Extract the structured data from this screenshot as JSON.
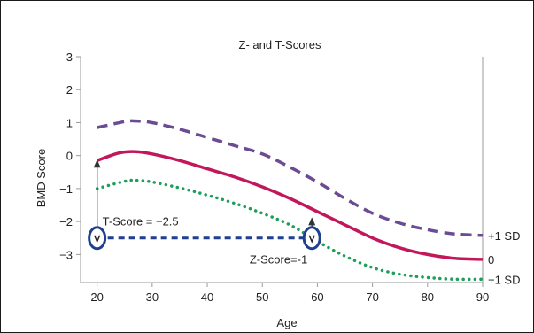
{
  "chart_data": {
    "type": "line",
    "title": "Z- and T-Scores",
    "xlabel": "Age",
    "ylabel": "BMD Score",
    "xlim": [
      17,
      90
    ],
    "ylim": [
      -3.85,
      3
    ],
    "xticks": [
      20,
      30,
      40,
      50,
      60,
      70,
      80,
      90
    ],
    "yticks": [
      3,
      2,
      1,
      0,
      -1,
      -2,
      -3
    ],
    "ytick_labels": [
      "3",
      "2",
      "1",
      "0",
      "−1",
      "−2",
      "−3"
    ],
    "grid": false,
    "series": [
      {
        "name": "+1 SD",
        "color": "#6a4c93",
        "style": "dashed",
        "x": [
          20,
          25,
          27,
          30,
          35,
          40,
          45,
          50,
          55,
          60,
          65,
          70,
          75,
          80,
          85,
          90
        ],
        "y": [
          0.85,
          1.03,
          1.05,
          1.0,
          0.8,
          0.55,
          0.3,
          0.05,
          -0.35,
          -0.8,
          -1.3,
          -1.75,
          -2.05,
          -2.25,
          -2.38,
          -2.42
        ]
      },
      {
        "name": "0",
        "color": "#c2185b",
        "style": "solid",
        "x": [
          20,
          24,
          27,
          30,
          35,
          40,
          45,
          50,
          55,
          60,
          65,
          70,
          75,
          80,
          85,
          90
        ],
        "y": [
          -0.15,
          0.08,
          0.12,
          0.05,
          -0.15,
          -0.4,
          -0.65,
          -0.95,
          -1.3,
          -1.7,
          -2.1,
          -2.5,
          -2.8,
          -3.0,
          -3.12,
          -3.15
        ]
      },
      {
        "name": "−1 SD",
        "color": "#1e9e5a",
        "style": "dotted",
        "x": [
          20,
          25,
          27,
          30,
          35,
          40,
          45,
          50,
          55,
          60,
          65,
          70,
          75,
          80,
          85,
          90
        ],
        "y": [
          -1.0,
          -0.78,
          -0.75,
          -0.8,
          -0.98,
          -1.2,
          -1.45,
          -1.75,
          -2.1,
          -2.6,
          -3.05,
          -3.4,
          -3.6,
          -3.7,
          -3.75,
          -3.75
        ]
      }
    ],
    "annotations": {
      "t_score_label": "T-Score = −2.5",
      "z_score_label": "Z-Score=-1",
      "t_point": {
        "x": 20,
        "y": -2.5
      },
      "z_point": {
        "x": 59,
        "y": -2.5
      },
      "t_arrow_from": -2.5,
      "t_arrow_to": -0.15,
      "z_arrow_from": -2.5,
      "z_arrow_to": -1.9,
      "marker_color": "#1f3f8f",
      "connector_color": "#1f3f8f",
      "arrow_color": "#333333"
    }
  }
}
